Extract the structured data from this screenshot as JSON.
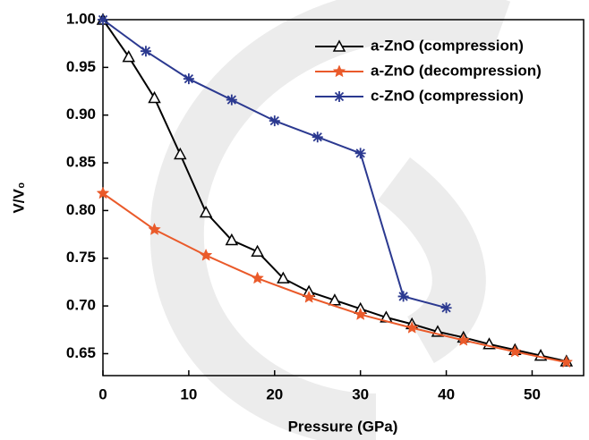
{
  "chart_data": {
    "type": "line",
    "x_label": "Pressure (GPa)",
    "y_label": "V/V₀",
    "xlim": [
      0,
      56
    ],
    "xticks": [
      0,
      10,
      20,
      30,
      40,
      50
    ],
    "ylim": [
      0.627,
      1.0
    ],
    "yticks": [
      {
        "value": 0.65,
        "label": "0.65"
      },
      {
        "value": 0.7,
        "label": "0.70"
      },
      {
        "value": 0.75,
        "label": "0.75"
      },
      {
        "value": 0.8,
        "label": "0.80"
      },
      {
        "value": 0.85,
        "label": "0.85"
      },
      {
        "value": 0.9,
        "label": "0.90"
      },
      {
        "value": 0.95,
        "label": "0.95"
      },
      {
        "value": 1.0,
        "label": "1.00"
      }
    ],
    "legend": "top-right",
    "series": [
      {
        "name": "a-ZnO (compression)",
        "color": "#000000",
        "marker": "triangle",
        "x": [
          0,
          3,
          6,
          9,
          12,
          15,
          18,
          21,
          24,
          27,
          30,
          33,
          36,
          39,
          42,
          45,
          48,
          51,
          54
        ],
        "values": [
          1.0,
          0.961,
          0.918,
          0.859,
          0.798,
          0.769,
          0.757,
          0.729,
          0.715,
          0.706,
          0.697,
          0.688,
          0.681,
          0.673,
          0.667,
          0.66,
          0.654,
          0.648,
          0.642
        ]
      },
      {
        "name": "a-ZnO (decompression)",
        "color": "#ea5a2a",
        "marker": "star",
        "x": [
          0,
          6,
          12,
          18,
          24,
          30,
          36,
          42,
          48,
          54
        ],
        "values": [
          0.818,
          0.78,
          0.753,
          0.729,
          0.709,
          0.691,
          0.677,
          0.664,
          0.652,
          0.641
        ]
      },
      {
        "name": "c-ZnO (compression)",
        "color": "#2b3990",
        "marker": "asterisk",
        "x": [
          0,
          5,
          10,
          15,
          20,
          25,
          30,
          35,
          40
        ],
        "values": [
          1.0,
          0.967,
          0.938,
          0.916,
          0.894,
          0.877,
          0.86,
          0.71,
          0.698
        ]
      }
    ]
  }
}
